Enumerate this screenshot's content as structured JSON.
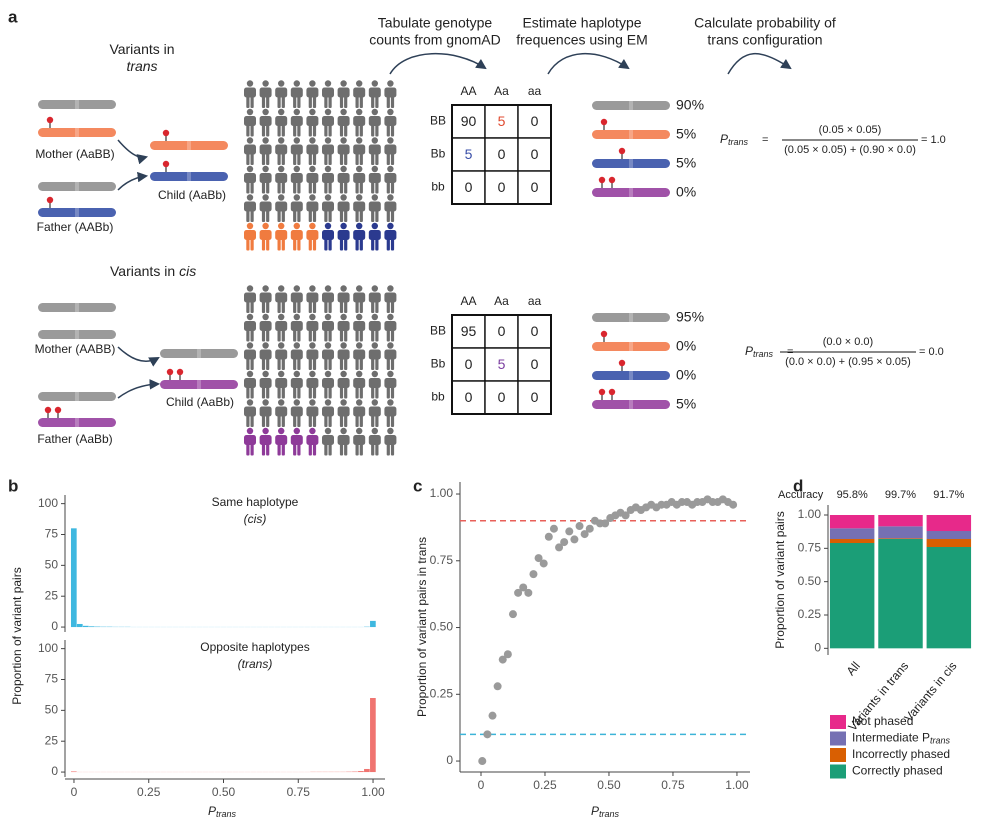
{
  "panel_a": {
    "label": "a",
    "steps": [
      [
        "Tabulate genotype",
        "counts from gnomAD"
      ],
      [
        "Estimate haplotype",
        "frequences using EM"
      ],
      [
        "Calculate probability of",
        "trans configuration"
      ]
    ],
    "trans": {
      "heading": [
        "Variants in",
        "trans"
      ],
      "mother": "Mother (AaBB)",
      "father": "Father (AABb)",
      "child": "Child (AaBb)",
      "columns": [
        "AA",
        "Aa",
        "aa"
      ],
      "rows": [
        "BB",
        "Bb",
        "bb"
      ],
      "counts": [
        [
          90,
          5,
          0
        ],
        [
          5,
          0,
          0
        ],
        [
          0,
          0,
          0
        ]
      ],
      "haplotypes": [
        "90%",
        "5%",
        "5%",
        "0%"
      ],
      "formula": {
        "symbol": "P",
        "sub": "trans",
        "equals": "=",
        "numerator": "(0.05 × 0.05)",
        "denominator": "(0.05 × 0.05) + (0.90 × 0.0)",
        "result": "= 1.0"
      }
    },
    "cis": {
      "heading": [
        "Variants in",
        "cis"
      ],
      "mother": "Mother (AABB)",
      "father": "Father (AaBb)",
      "child": "Child (AaBb)",
      "columns": [
        "AA",
        "Aa",
        "aa"
      ],
      "rows": [
        "BB",
        "Bb",
        "bb"
      ],
      "counts": [
        [
          95,
          0,
          0
        ],
        [
          0,
          5,
          0
        ],
        [
          0,
          0,
          0
        ]
      ],
      "haplotypes": [
        "95%",
        "0%",
        "0%",
        "5%"
      ],
      "formula": {
        "symbol": "P",
        "sub": "trans",
        "equals": "=",
        "numerator": "(0.0 × 0.0)",
        "denominator": "(0.0 × 0.0) + (0.95 × 0.05)",
        "result": "= 0.0"
      }
    }
  },
  "chart_data": [
    {
      "type": "histogram",
      "label": "b",
      "ylabel": "Proportion of variant pairs",
      "xlabel": "P",
      "xlabel_sub": "trans",
      "xlim": [
        -0.03,
        1.04
      ],
      "xticks": [
        0,
        0.25,
        {
          "value": 0.5,
          "label": "0.50"
        },
        0.75,
        {
          "value": 1,
          "label": "1.00"
        }
      ],
      "ylim": [
        -4,
        107
      ],
      "yticks": [
        0,
        25,
        50,
        75,
        100
      ],
      "bins": [
        -0.01,
        0.01,
        0.03,
        0.05,
        0.07,
        0.09,
        0.11,
        0.13,
        0.15,
        0.17,
        0.19,
        0.21,
        0.23,
        0.25,
        0.27,
        0.29,
        0.31,
        0.33,
        0.35,
        0.37,
        0.39,
        0.41,
        0.43,
        0.45,
        0.47,
        0.49,
        0.51,
        0.53,
        0.55,
        0.57,
        0.59,
        0.61,
        0.63,
        0.65,
        0.67,
        0.69,
        0.71,
        0.73,
        0.75,
        0.77,
        0.79,
        0.81,
        0.83,
        0.85,
        0.87,
        0.89,
        0.91,
        0.93,
        0.95,
        0.97,
        0.99,
        1.01
      ],
      "subplots": [
        {
          "title": [
            "Same haplotype",
            "(cis)"
          ],
          "color": "#3fb8e0",
          "values": [
            80,
            2.5,
            1,
            0.6,
            0.4,
            0.3,
            0.3,
            0.2,
            0.2,
            0.2,
            0.1,
            0.1,
            0.1,
            0.1,
            0.1,
            0.1,
            0.1,
            0.1,
            0.1,
            0.1,
            0.1,
            0.1,
            0.1,
            0.1,
            0.1,
            0.1,
            0.1,
            0.1,
            0.1,
            0.1,
            0.1,
            0.1,
            0.1,
            0.1,
            0.1,
            0.1,
            0.1,
            0.1,
            0.1,
            0.1,
            0.1,
            0.1,
            0.1,
            0.1,
            0.1,
            0.1,
            0.1,
            0.1,
            0.1,
            0.3,
            5
          ]
        },
        {
          "title": [
            "Opposite haplotypes",
            "(trans)"
          ],
          "color": "#f07470",
          "values": [
            0.5,
            0.1,
            0.1,
            0.1,
            0.1,
            0.1,
            0.1,
            0.1,
            0.1,
            0.1,
            0.1,
            0.1,
            0.1,
            0.1,
            0.1,
            0.1,
            0.1,
            0.1,
            0.1,
            0.1,
            0.1,
            0.1,
            0.1,
            0.1,
            0.1,
            0.1,
            0.1,
            0.1,
            0.1,
            0.1,
            0.1,
            0.1,
            0.1,
            0.1,
            0.1,
            0.1,
            0.1,
            0.1,
            0.1,
            0.1,
            0.2,
            0.2,
            0.2,
            0.2,
            0.2,
            0.2,
            0.3,
            0.4,
            0.8,
            2.5,
            60
          ]
        }
      ]
    },
    {
      "type": "scatter",
      "label": "c",
      "ylabel": "Proportion of variant pairs in trans",
      "xlabel": "P",
      "xlabel_sub": "trans",
      "xlim": [
        -0.082,
        1.051
      ],
      "xticks": [
        0,
        0.25,
        {
          "value": 0.5,
          "label": "0.50"
        },
        0.75,
        {
          "value": 1,
          "label": "1.00"
        }
      ],
      "ylim": [
        -0.041,
        1.045
      ],
      "yticks": [
        0,
        0.25,
        {
          "value": 0.5,
          "label": "0.50"
        },
        0.75,
        {
          "value": 1,
          "label": "1.00"
        }
      ],
      "color": "#9a9a9a",
      "hlines": [
        {
          "value": 0.9,
          "color": "#e8605a"
        },
        {
          "value": 0.1,
          "color": "#3cb4d8"
        }
      ],
      "x": [
        0.005,
        0.025,
        0.045,
        0.065,
        0.085,
        0.105,
        0.125,
        0.145,
        0.165,
        0.185,
        0.205,
        0.225,
        0.245,
        0.265,
        0.285,
        0.305,
        0.325,
        0.345,
        0.365,
        0.385,
        0.405,
        0.425,
        0.445,
        0.465,
        0.485,
        0.505,
        0.525,
        0.545,
        0.565,
        0.585,
        0.605,
        0.625,
        0.645,
        0.665,
        0.685,
        0.705,
        0.725,
        0.745,
        0.765,
        0.785,
        0.805,
        0.825,
        0.845,
        0.865,
        0.885,
        0.905,
        0.925,
        0.945,
        0.965,
        0.985
      ],
      "y": [
        0.0,
        0.1,
        0.17,
        0.28,
        0.38,
        0.4,
        0.55,
        0.63,
        0.65,
        0.63,
        0.7,
        0.76,
        0.74,
        0.84,
        0.87,
        0.8,
        0.82,
        0.86,
        0.83,
        0.88,
        0.85,
        0.87,
        0.9,
        0.89,
        0.89,
        0.91,
        0.92,
        0.93,
        0.92,
        0.94,
        0.95,
        0.94,
        0.95,
        0.96,
        0.95,
        0.96,
        0.96,
        0.97,
        0.96,
        0.97,
        0.97,
        0.96,
        0.97,
        0.97,
        0.98,
        0.97,
        0.97,
        0.98,
        0.97,
        0.96
      ]
    },
    {
      "type": "stacked_bar",
      "label": "d",
      "ylabel": "Proportion of variant pairs",
      "categories": [
        "All",
        "Variants in trans",
        "Variants in cis"
      ],
      "accuracy_title": "Accuracy",
      "accuracy_labels": [
        "95.8%",
        "99.7%",
        "91.7%"
      ],
      "ylim": [
        -0.05,
        1.075
      ],
      "yticks": [
        0,
        0.25,
        {
          "value": 0.5,
          "label": "0.50"
        },
        0.75,
        {
          "value": 1,
          "label": "1.00"
        }
      ],
      "series": [
        {
          "name": "Correctly phased",
          "color": "#1b9e77",
          "values": [
            0.79,
            0.82,
            0.76
          ]
        },
        {
          "name": "Incorrectly phased",
          "color": "#d95f02",
          "values": [
            0.03,
            0.005,
            0.06
          ]
        },
        {
          "name": "Intermediate P",
          "name_sub": "trans",
          "color": "#7570b3",
          "values": [
            0.08,
            0.09,
            0.06
          ]
        },
        {
          "name": "Not phased",
          "color": "#e7298a",
          "values": [
            0.1,
            0.085,
            0.12
          ]
        }
      ]
    }
  ]
}
